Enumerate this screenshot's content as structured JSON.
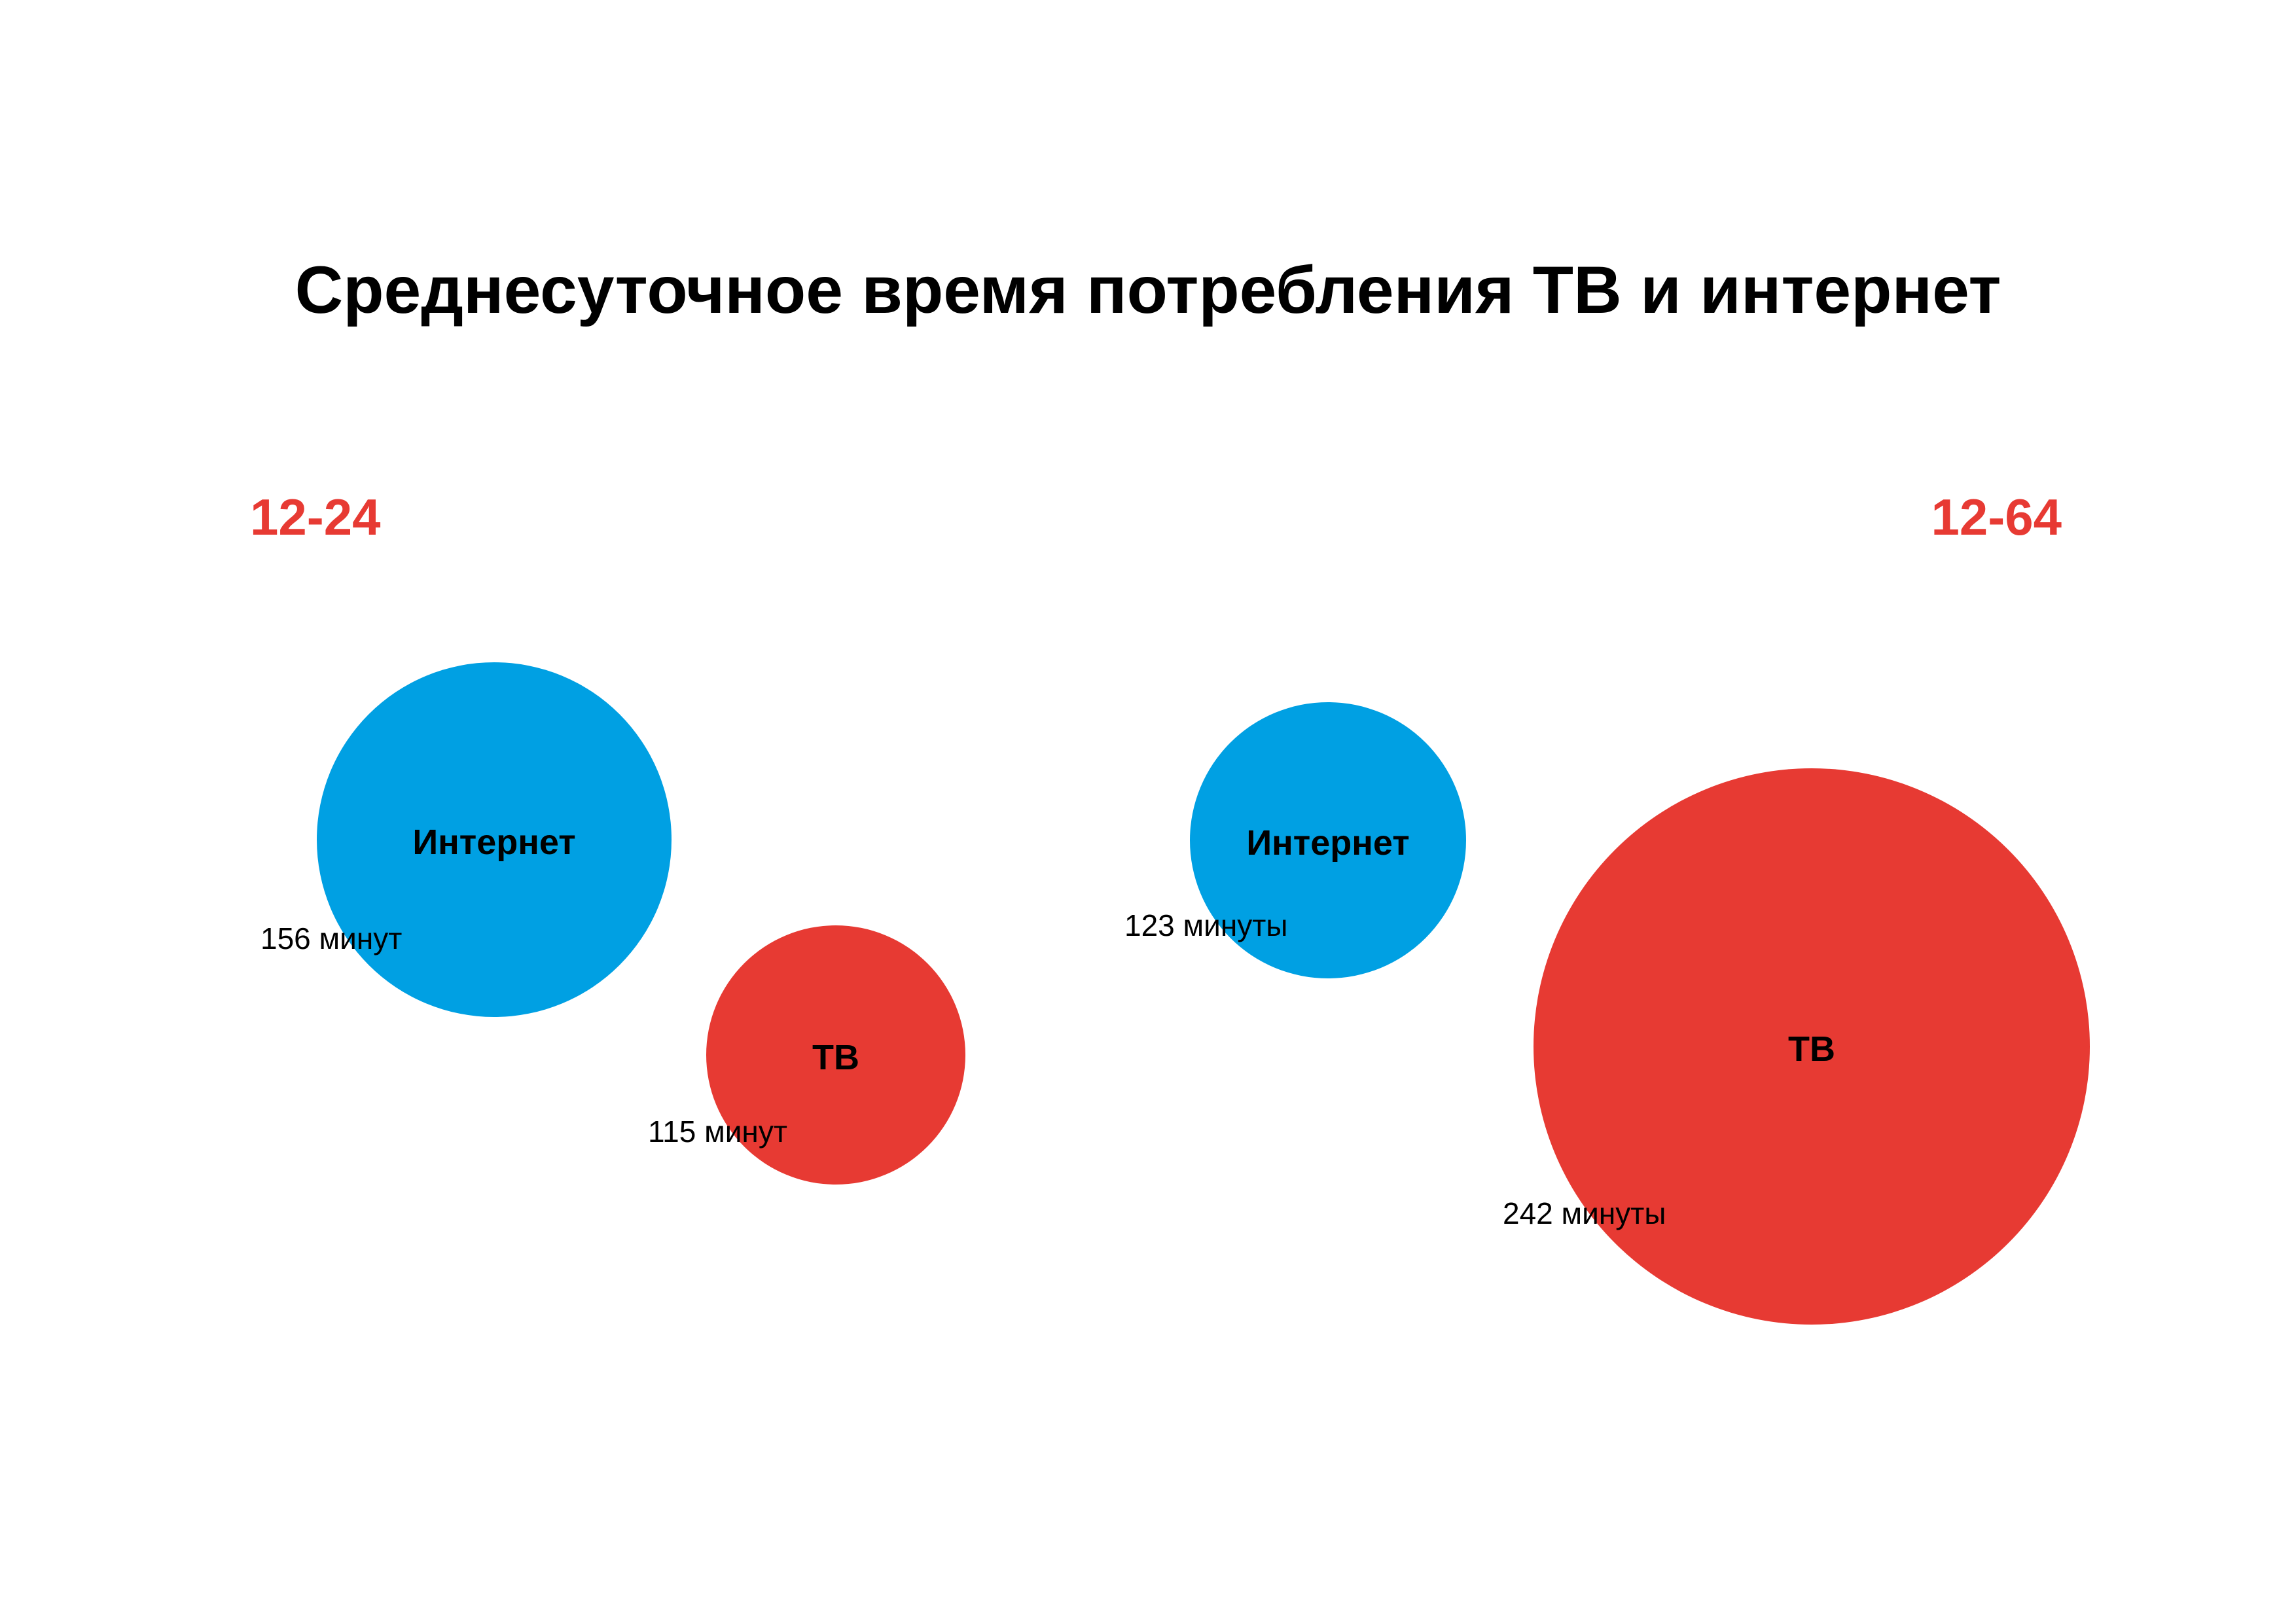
{
  "chart_data": {
    "type": "bubble",
    "title": "Среднесуточное время потребления ТВ и интернет",
    "colors": {
      "Интернет": "#00a0e3",
      "ТВ": "#e73a33",
      "group_label": "#e73a33"
    },
    "groups": [
      {
        "label": "12-24",
        "bubbles": [
          {
            "name": "Интернет",
            "value": 156,
            "value_label": "156 минут"
          },
          {
            "name": "ТВ",
            "value": 115,
            "value_label": "115 минут"
          }
        ]
      },
      {
        "label": "12-64",
        "bubbles": [
          {
            "name": "Интернет",
            "value": 123,
            "value_label": "123 минуты"
          },
          {
            "name": "ТВ",
            "value": 242,
            "value_label": "242 минуты"
          }
        ]
      }
    ]
  }
}
